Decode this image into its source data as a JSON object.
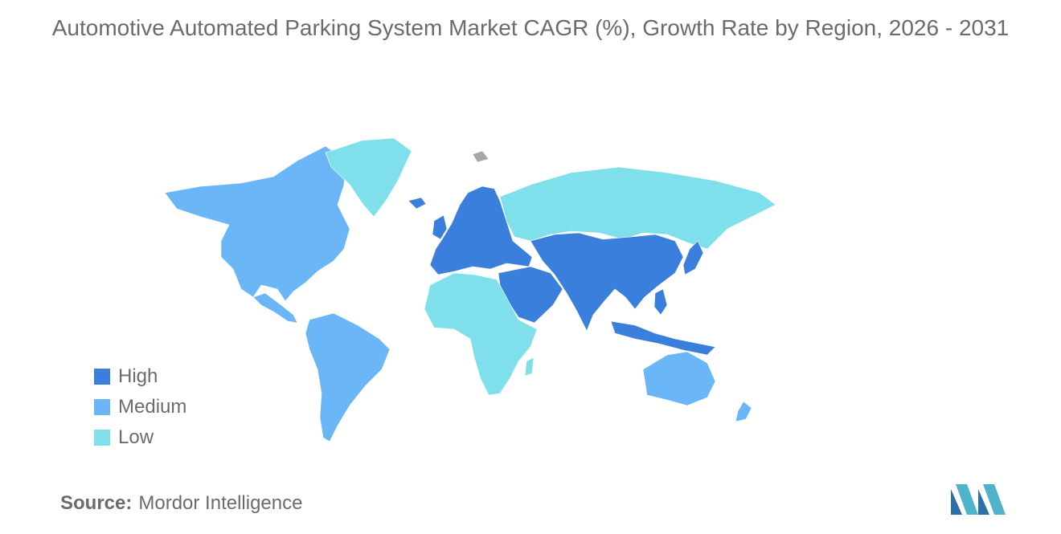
{
  "title": "Automotive Automated Parking System Market CAGR (%), Growth Rate by Region, 2026 - 2031",
  "colors": {
    "high": "#3b7fdc",
    "medium": "#6ab6f7",
    "low": "#7fe0ec",
    "no_data": "#a6a6a6"
  },
  "legend": [
    {
      "label": "High",
      "color": "#3b7fdc"
    },
    {
      "label": "Medium",
      "color": "#6ab6f7"
    },
    {
      "label": "Low",
      "color": "#7fe0ec"
    }
  ],
  "regions": [
    {
      "name": "north-america",
      "level": "medium"
    },
    {
      "name": "south-america",
      "level": "medium"
    },
    {
      "name": "greenland",
      "level": "low"
    },
    {
      "name": "europe",
      "level": "high"
    },
    {
      "name": "russia",
      "level": "low"
    },
    {
      "name": "africa",
      "level": "low"
    },
    {
      "name": "middle-east",
      "level": "high"
    },
    {
      "name": "asia",
      "level": "high"
    },
    {
      "name": "australia",
      "level": "medium"
    },
    {
      "name": "new-zealand",
      "level": "medium"
    }
  ],
  "source": {
    "label": "Source:",
    "value": "Mordor Intelligence"
  },
  "logo_icon": "mordor-intelligence-logo-icon"
}
